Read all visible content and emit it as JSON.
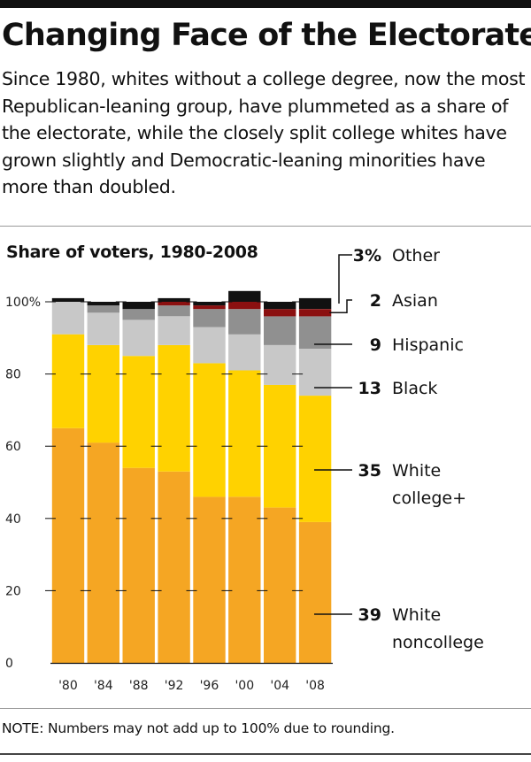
{
  "title": "Changing Face of the Electorate",
  "subtitle": "Since 1980, whites without a college degree, now the most Republican-leaning group, have plummeted as a share of the electorate, while the closely split college whites have grown slightly and Democratic-leaning minorities have more than doubled.",
  "note": "NOTE: Numbers may not add up to 100% due to rounding.",
  "chart_data": {
    "type": "bar",
    "stacked": true,
    "title": "Share of voters, 1980-2008",
    "xlabel": "",
    "ylabel": "",
    "ylim": [
      0,
      100
    ],
    "yticks": [
      "0",
      "20",
      "40",
      "60",
      "80",
      "100%"
    ],
    "ytick_values": [
      0,
      20,
      40,
      60,
      80,
      100
    ],
    "categories": [
      "'80",
      "'84",
      "'88",
      "'92",
      "'96",
      "'00",
      "'04",
      "'08"
    ],
    "series": [
      {
        "name": "White noncollege",
        "color": "#F5A623",
        "values": [
          65,
          61,
          54,
          53,
          46,
          46,
          43,
          39
        ]
      },
      {
        "name": "White college+",
        "color": "#FFD200",
        "values": [
          26,
          27,
          31,
          35,
          37,
          35,
          34,
          35
        ]
      },
      {
        "name": "Black",
        "color": "#C8C8C8",
        "values": [
          9,
          9,
          10,
          8,
          10,
          10,
          11,
          13
        ]
      },
      {
        "name": "Hispanic",
        "color": "#909090",
        "values": [
          0,
          2,
          3,
          3,
          5,
          7,
          8,
          9
        ]
      },
      {
        "name": "Asian",
        "color": "#8B1010",
        "values": [
          0,
          0,
          0,
          1,
          1,
          2,
          2,
          2
        ]
      },
      {
        "name": "Other",
        "color": "#111111",
        "values": [
          1,
          1,
          2,
          1,
          1,
          3,
          2,
          3
        ]
      }
    ],
    "legend": [
      {
        "value": "3%",
        "label": "Other"
      },
      {
        "value": "2",
        "label": "Asian"
      },
      {
        "value": "9",
        "label": "Hispanic"
      },
      {
        "value": "13",
        "label": "Black"
      },
      {
        "value": "35",
        "label": "White",
        "label2": "college+"
      },
      {
        "value": "39",
        "label": "White",
        "label2": "noncollege"
      }
    ],
    "grid": true,
    "legend_placement": "right"
  }
}
